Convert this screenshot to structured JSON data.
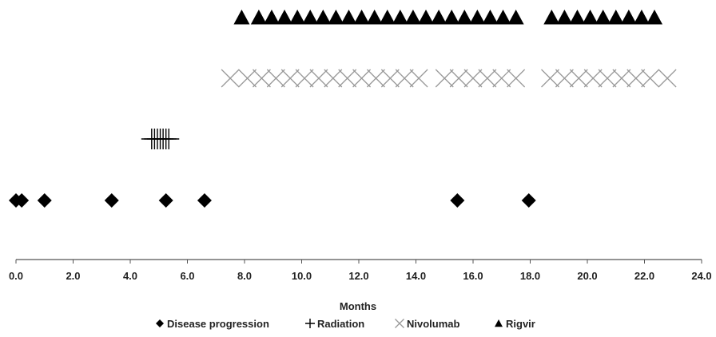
{
  "chart_data": {
    "type": "scatter",
    "title": "",
    "xlabel": "Months",
    "ylabel": "",
    "xlim": [
      0,
      24
    ],
    "x_ticks": [
      "0.0",
      "2.0",
      "4.0",
      "6.0",
      "8.0",
      "10.0",
      "12.0",
      "14.0",
      "16.0",
      "18.0",
      "20.0",
      "22.0",
      "24.0"
    ],
    "grid": false,
    "legend_position": "bottom",
    "series": [
      {
        "name": "Disease progression",
        "marker": "diamond",
        "color": "#000000",
        "row": 1,
        "x": [
          0.0,
          0.2,
          1.0,
          3.35,
          5.25,
          6.6,
          15.45,
          17.95
        ]
      },
      {
        "name": "Radiation",
        "marker": "plus",
        "color": "#000000",
        "row": 2,
        "x": [
          4.75,
          4.85,
          4.95,
          5.05,
          5.15,
          5.25,
          5.35
        ]
      },
      {
        "name": "Nivolumab",
        "marker": "x",
        "color": "#999999",
        "row": 3,
        "x": [
          7.5,
          8.1,
          8.6,
          9.1,
          9.6,
          10.1,
          10.6,
          11.1,
          11.6,
          12.1,
          12.6,
          13.1,
          13.6,
          14.1,
          15.0,
          15.5,
          16.0,
          16.5,
          17.0,
          17.5,
          18.7,
          19.2,
          19.7,
          20.2,
          20.7,
          21.2,
          21.7,
          22.2,
          22.8
        ]
      },
      {
        "name": "Rigvir",
        "marker": "triangle",
        "color": "#000000",
        "row": 4,
        "x": [
          7.9,
          8.5,
          8.95,
          9.4,
          9.85,
          10.3,
          10.75,
          11.2,
          11.65,
          12.1,
          12.55,
          13.0,
          13.45,
          13.9,
          14.35,
          14.8,
          15.25,
          15.7,
          16.15,
          16.6,
          17.05,
          17.5,
          18.75,
          19.2,
          19.65,
          20.1,
          20.55,
          21.0,
          21.45,
          21.9,
          22.35
        ]
      }
    ]
  }
}
